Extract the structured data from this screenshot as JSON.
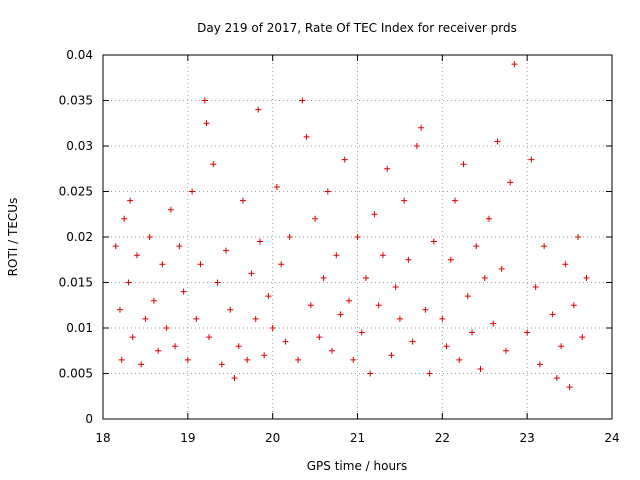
{
  "chart_data": {
    "type": "scatter",
    "title": "Day 219 of 2017, Rate Of TEC Index for receiver prds",
    "xlabel": "GPS time / hours",
    "ylabel": "ROTI / TECUs",
    "xlim": [
      18,
      24
    ],
    "ylim": [
      0,
      0.04
    ],
    "xticks": [
      "18",
      "19",
      "20",
      "21",
      "22",
      "23",
      "24"
    ],
    "yticks": [
      "0",
      "0.005",
      "0.01",
      "0.015",
      "0.02",
      "0.025",
      "0.03",
      "0.035",
      "0.04"
    ],
    "grid": true,
    "marker": "+",
    "color": "#e00000",
    "series": [
      {
        "name": "ROTI",
        "x": [
          18.15,
          18.2,
          18.22,
          18.25,
          18.3,
          18.32,
          18.35,
          18.4,
          18.45,
          18.5,
          18.55,
          18.6,
          18.65,
          18.7,
          18.75,
          18.8,
          18.85,
          18.9,
          18.95,
          19.0,
          19.05,
          19.1,
          19.15,
          19.2,
          19.22,
          19.25,
          19.3,
          19.35,
          19.4,
          19.45,
          19.5,
          19.55,
          19.6,
          19.65,
          19.7,
          19.75,
          19.8,
          19.83,
          19.85,
          19.9,
          19.95,
          20.0,
          20.05,
          20.1,
          20.15,
          20.2,
          20.3,
          20.35,
          20.4,
          20.45,
          20.5,
          20.55,
          20.6,
          20.65,
          20.7,
          20.75,
          20.8,
          20.85,
          20.9,
          20.95,
          21.0,
          21.05,
          21.1,
          21.15,
          21.2,
          21.25,
          21.3,
          21.35,
          21.4,
          21.45,
          21.5,
          21.55,
          21.6,
          21.65,
          21.7,
          21.75,
          21.8,
          21.85,
          21.9,
          22.0,
          22.05,
          22.1,
          22.15,
          22.2,
          22.25,
          22.3,
          22.35,
          22.4,
          22.45,
          22.5,
          22.55,
          22.6,
          22.65,
          22.7,
          22.75,
          22.8,
          22.85,
          23.0,
          23.05,
          23.1,
          23.15,
          23.2,
          23.3,
          23.35,
          23.4,
          23.45,
          23.5,
          23.55,
          23.6,
          23.65,
          23.7
        ],
        "y": [
          0.019,
          0.012,
          0.0065,
          0.022,
          0.015,
          0.024,
          0.009,
          0.018,
          0.006,
          0.011,
          0.02,
          0.013,
          0.0075,
          0.017,
          0.01,
          0.023,
          0.008,
          0.019,
          0.014,
          0.0065,
          0.025,
          0.011,
          0.017,
          0.035,
          0.0325,
          0.009,
          0.028,
          0.015,
          0.006,
          0.0185,
          0.012,
          0.0045,
          0.008,
          0.024,
          0.0065,
          0.016,
          0.011,
          0.034,
          0.0195,
          0.007,
          0.0135,
          0.01,
          0.0255,
          0.017,
          0.0085,
          0.02,
          0.0065,
          0.035,
          0.031,
          0.0125,
          0.022,
          0.009,
          0.0155,
          0.025,
          0.0075,
          0.018,
          0.0115,
          0.0285,
          0.013,
          0.0065,
          0.02,
          0.0095,
          0.0155,
          0.005,
          0.0225,
          0.0125,
          0.018,
          0.0275,
          0.007,
          0.0145,
          0.011,
          0.024,
          0.0175,
          0.0085,
          0.03,
          0.032,
          0.012,
          0.005,
          0.0195,
          0.011,
          0.008,
          0.0175,
          0.024,
          0.0065,
          0.028,
          0.0135,
          0.0095,
          0.019,
          0.0055,
          0.0155,
          0.022,
          0.0105,
          0.0305,
          0.0165,
          0.0075,
          0.026,
          0.039,
          0.0095,
          0.0285,
          0.0145,
          0.006,
          0.019,
          0.0115,
          0.0045,
          0.008,
          0.017,
          0.0035,
          0.0125,
          0.02,
          0.009,
          0.0155
        ]
      }
    ]
  }
}
